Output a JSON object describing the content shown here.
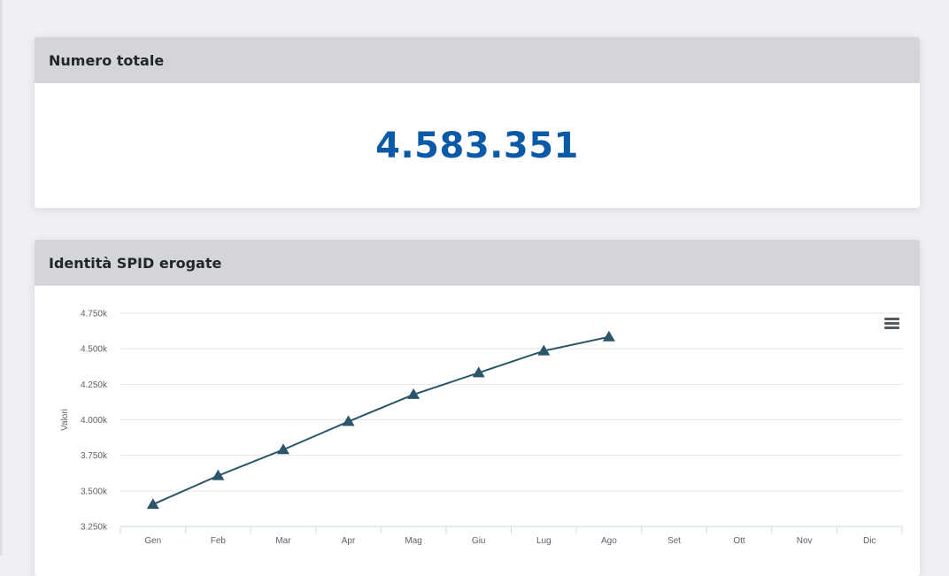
{
  "total_card": {
    "title": "Numero totale",
    "value": "4.583.351"
  },
  "chart_card": {
    "title": "Identità SPID erogate",
    "menu_icon": "hamburger-menu-icon"
  },
  "colors": {
    "accent": "#0b5aa8",
    "series": "#2b5568",
    "header": "#d3d5da"
  },
  "chart_data": {
    "type": "line",
    "ylabel": "Valori",
    "categories": [
      "Gen",
      "Feb",
      "Mar",
      "Apr",
      "Mag",
      "Giu",
      "Lug",
      "Ago",
      "Set",
      "Ott",
      "Nov",
      "Dic"
    ],
    "series": [
      {
        "marker": "triangle",
        "values": [
          3405000,
          3607000,
          3790000,
          3988000,
          4178000,
          4331000,
          4485000,
          4583351,
          null,
          null,
          null,
          null
        ]
      }
    ],
    "ylim": [
      3250000,
      4750000
    ],
    "yticks": [
      {
        "value": 3250000,
        "label": "3.250k"
      },
      {
        "value": 3500000,
        "label": "3.500k"
      },
      {
        "value": 3750000,
        "label": "3.750k"
      },
      {
        "value": 4000000,
        "label": "4.000k"
      },
      {
        "value": 4250000,
        "label": "4.250k"
      },
      {
        "value": 4500000,
        "label": "4.500k"
      },
      {
        "value": 4750000,
        "label": "4.750k"
      }
    ],
    "grid": true,
    "legend": "none"
  }
}
